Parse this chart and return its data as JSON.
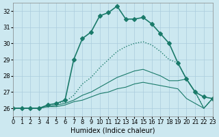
{
  "xlabel": "Humidex (Indice chaleur)",
  "ylabel": "",
  "bg_color": "#cce8f0",
  "grid_color": "#aaccdd",
  "line_color": "#1a7a6a",
  "xlim": [
    0,
    23
  ],
  "ylim": [
    25.5,
    32.5
  ],
  "xticks": [
    0,
    1,
    2,
    3,
    4,
    5,
    6,
    7,
    8,
    9,
    10,
    11,
    12,
    13,
    14,
    15,
    16,
    17,
    18,
    19,
    20,
    21,
    22,
    23
  ],
  "yticks": [
    26,
    27,
    28,
    29,
    30,
    31,
    32
  ],
  "series": [
    {
      "x": [
        0,
        1,
        2,
        3,
        4,
        5,
        6,
        7,
        8,
        9,
        10,
        11,
        12,
        13,
        14,
        15,
        16,
        17,
        18,
        19,
        20,
        21,
        22,
        23
      ],
      "y": [
        26.0,
        26.0,
        26.0,
        26.0,
        26.2,
        26.3,
        26.5,
        29.0,
        30.3,
        30.7,
        31.7,
        31.9,
        32.3,
        31.5,
        31.5,
        31.6,
        31.2,
        30.6,
        30.0,
        28.8,
        27.8,
        27.0,
        26.7,
        26.6
      ],
      "marker": "D",
      "linestyle": "-",
      "linewidth": 1.2
    },
    {
      "x": [
        0,
        1,
        2,
        3,
        4,
        5,
        6,
        7,
        8,
        9,
        10,
        11,
        12,
        13,
        14,
        15,
        16,
        17,
        18,
        19,
        20,
        21,
        22,
        23
      ],
      "y": [
        26.0,
        26.0,
        26.0,
        26.0,
        26.2,
        26.3,
        26.4,
        26.8,
        27.5,
        27.9,
        28.5,
        29.0,
        29.5,
        29.8,
        30.0,
        30.1,
        29.9,
        29.5,
        29.0,
        28.8,
        27.8,
        27.0,
        26.0,
        26.6
      ],
      "marker": null,
      "linestyle": ":",
      "linewidth": 1.0
    },
    {
      "x": [
        0,
        1,
        2,
        3,
        4,
        5,
        6,
        7,
        8,
        9,
        10,
        11,
        12,
        13,
        14,
        15,
        16,
        17,
        18,
        19,
        20,
        21,
        22,
        23
      ],
      "y": [
        26.0,
        26.0,
        26.0,
        26.0,
        26.1,
        26.2,
        26.3,
        26.5,
        26.8,
        27.0,
        27.3,
        27.6,
        27.9,
        28.1,
        28.3,
        28.4,
        28.2,
        28.0,
        27.7,
        27.7,
        27.8,
        27.0,
        26.0,
        26.6
      ],
      "marker": null,
      "linestyle": "-",
      "linewidth": 0.8
    },
    {
      "x": [
        0,
        1,
        2,
        3,
        4,
        5,
        6,
        7,
        8,
        9,
        10,
        11,
        12,
        13,
        14,
        15,
        16,
        17,
        18,
        19,
        20,
        21,
        22,
        23
      ],
      "y": [
        26.0,
        26.0,
        26.0,
        26.0,
        26.1,
        26.1,
        26.2,
        26.4,
        26.5,
        26.7,
        26.9,
        27.0,
        27.2,
        27.3,
        27.5,
        27.6,
        27.5,
        27.4,
        27.3,
        27.2,
        26.6,
        26.3,
        26.0,
        26.6
      ],
      "marker": null,
      "linestyle": "-",
      "linewidth": 0.8
    }
  ]
}
